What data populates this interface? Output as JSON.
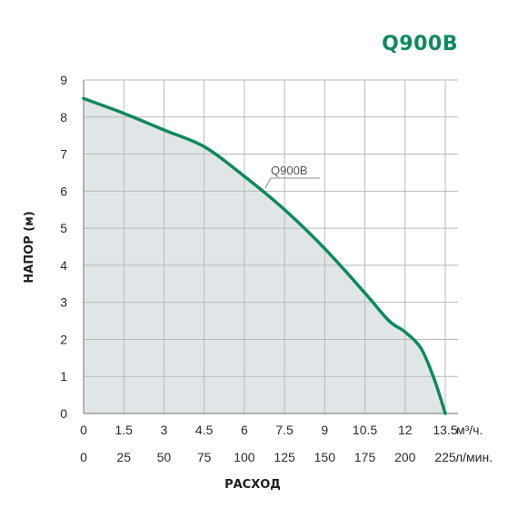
{
  "header": {
    "model": "Q900B"
  },
  "colors": {
    "curve": "#0c8a5e",
    "fill": "#e0e5e8",
    "grid": "#b9b9b9",
    "frame": "#8a8a8a",
    "brand": "#0c8a5e"
  },
  "chart_data": {
    "type": "area",
    "title": "Q900B",
    "xlabel": "РАСХОД",
    "ylabel": "НАПОР (м)",
    "xlim": [
      0,
      13.5
    ],
    "ylim": [
      0,
      9
    ],
    "x_ticks_m3h": [
      "0",
      "1.5",
      "3",
      "4.5",
      "6",
      "7.5",
      "9",
      "10.5",
      "12",
      "13.5"
    ],
    "x_unit_m3h": "м³/ч.",
    "x_ticks_lmin": [
      "0",
      "25",
      "50",
      "75",
      "100",
      "125",
      "150",
      "175",
      "200",
      "225"
    ],
    "x_unit_lmin": "л/мин.",
    "y_ticks": [
      "0",
      "1",
      "2",
      "3",
      "4",
      "5",
      "6",
      "7",
      "8",
      "9"
    ],
    "grid": true,
    "series": [
      {
        "name": "Q900B",
        "x": [
          0,
          1.5,
          3,
          4.5,
          6,
          7.5,
          9,
          10.5,
          11.4,
          12,
          12.6,
          13.1,
          13.5
        ],
        "y": [
          8.5,
          8.1,
          7.65,
          7.2,
          6.4,
          5.5,
          4.45,
          3.25,
          2.5,
          2.2,
          1.75,
          0.9,
          0
        ]
      }
    ]
  }
}
